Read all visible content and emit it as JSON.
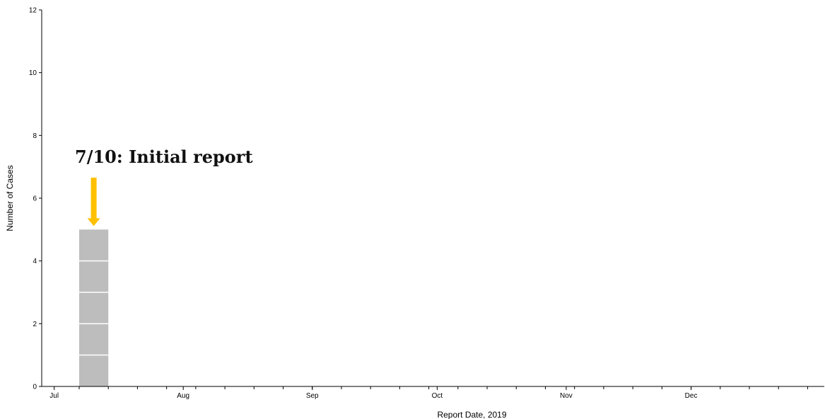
{
  "chart_data": {
    "type": "bar",
    "xlabel": "Report Date, 2019",
    "ylabel": "Number of Cases",
    "ylim": [
      0,
      12
    ],
    "y_ticks": [
      0,
      2,
      4,
      6,
      8,
      10,
      12
    ],
    "x_range": [
      "2019-07-01",
      "2019-12-31"
    ],
    "month_labels": [
      {
        "date": "2019-07-01",
        "label": "Jul"
      },
      {
        "date": "2019-08-01",
        "label": "Aug"
      },
      {
        "date": "2019-09-01",
        "label": "Sep"
      },
      {
        "date": "2019-10-01",
        "label": "Oct"
      },
      {
        "date": "2019-11-01",
        "label": "Nov"
      },
      {
        "date": "2019-12-01",
        "label": "Dec"
      }
    ],
    "bars": [
      {
        "start": "2019-07-07",
        "end": "2019-07-13",
        "value": 5
      }
    ],
    "bar_color": "#bdbdbd",
    "bar_case_divider_color": "#ffffff",
    "annotation": {
      "text": "7/10: Initial report",
      "date": "2019-07-10",
      "arrow_color": "#FFC000"
    },
    "grid": false,
    "legend": "none"
  }
}
